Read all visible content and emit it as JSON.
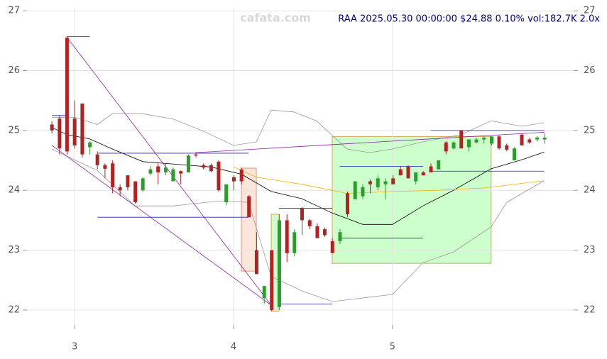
{
  "chart_data": {
    "type": "candlestick",
    "title": "RAA 2025.05.30 00:00:00 $24.88 0.10% vol:182.7K 2.0x",
    "watermark": "cafata.com",
    "xlim": [
      2.7,
      6.14
    ],
    "ylim": [
      21.75,
      27.05
    ],
    "xticks": [
      3,
      4,
      5
    ],
    "yticks": [
      22,
      23,
      24,
      25,
      26,
      27
    ],
    "grid": true,
    "up_color": "#2a9d2a",
    "down_color": "#b22222",
    "x": [
      2.857,
      2.905,
      2.952,
      3.0,
      3.048,
      3.096,
      3.143,
      3.191,
      3.239,
      3.286,
      3.334,
      3.382,
      3.429,
      3.477,
      3.525,
      3.573,
      3.62,
      3.668,
      3.716,
      3.763,
      3.811,
      3.859,
      3.906,
      3.954,
      4.002,
      4.05,
      4.097,
      4.145,
      4.193,
      4.24,
      4.288,
      4.336,
      4.383,
      4.431,
      4.479,
      4.527,
      4.574,
      4.622,
      4.67,
      4.717,
      4.765,
      4.813,
      4.86,
      4.908,
      4.956,
      5.004,
      5.051,
      5.099,
      5.147,
      5.194,
      5.242,
      5.29,
      5.337,
      5.385,
      5.433,
      5.481,
      5.528,
      5.576,
      5.624,
      5.671,
      5.719,
      5.767,
      5.814,
      5.862,
      5.91,
      5.958
    ],
    "open": [
      25.1,
      25.2,
      26.55,
      25.2,
      25.45,
      24.72,
      24.6,
      24.42,
      24.45,
      24.05,
      24.25,
      24.15,
      24.0,
      24.28,
      24.4,
      24.3,
      24.15,
      24.32,
      24.3,
      24.6,
      24.42,
      24.42,
      24.48,
      23.8,
      24.22,
      24.35,
      23.9,
      23.0,
      22.2,
      23.0,
      22.05,
      23.5,
      22.95,
      23.7,
      23.5,
      23.4,
      23.35,
      23.15,
      23.15,
      23.95,
      23.85,
      23.9,
      24.15,
      24.05,
      24.1,
      24.2,
      24.35,
      24.4,
      24.15,
      24.3,
      24.4,
      24.35,
      24.8,
      24.7,
      25.0,
      24.72,
      24.8,
      24.85,
      24.78,
      24.9,
      24.75,
      24.5,
      24.93,
      24.85,
      24.85,
      24.85
    ],
    "high": [
      25.15,
      25.25,
      26.57,
      25.5,
      25.45,
      24.82,
      24.65,
      24.45,
      24.5,
      24.1,
      24.25,
      24.15,
      24.22,
      24.4,
      24.45,
      24.45,
      24.38,
      24.33,
      24.6,
      24.62,
      24.45,
      24.45,
      24.5,
      24.1,
      24.25,
      24.38,
      23.92,
      23.3,
      22.4,
      23.0,
      23.6,
      23.6,
      23.35,
      23.72,
      23.52,
      23.45,
      23.38,
      23.2,
      23.35,
      23.98,
      24.15,
      24.1,
      24.18,
      24.25,
      24.2,
      24.25,
      24.4,
      24.42,
      24.3,
      24.32,
      24.45,
      24.5,
      24.82,
      24.82,
      25.0,
      24.85,
      24.88,
      24.9,
      24.9,
      24.92,
      24.78,
      24.72,
      24.95,
      24.88,
      24.9,
      24.95
    ],
    "low": [
      24.95,
      24.6,
      24.6,
      24.7,
      24.55,
      24.6,
      24.35,
      24.2,
      23.95,
      23.9,
      24.0,
      23.78,
      23.98,
      24.25,
      24.1,
      24.25,
      24.15,
      24.1,
      24.3,
      24.55,
      24.35,
      24.3,
      23.98,
      23.75,
      24.0,
      24.1,
      23.55,
      22.6,
      22.1,
      21.98,
      22.0,
      22.8,
      22.9,
      23.25,
      23.35,
      23.2,
      23.22,
      22.95,
      23.1,
      23.55,
      23.85,
      23.85,
      23.95,
      24.0,
      23.85,
      24.1,
      24.25,
      24.2,
      24.1,
      24.25,
      24.3,
      24.35,
      24.6,
      24.68,
      24.7,
      24.65,
      24.78,
      24.78,
      24.75,
      24.68,
      24.65,
      24.5,
      24.75,
      24.78,
      24.82,
      24.78
    ],
    "close": [
      25.0,
      24.7,
      24.65,
      24.75,
      24.6,
      24.8,
      24.42,
      24.36,
      24.05,
      24.0,
      24.05,
      23.8,
      24.2,
      24.35,
      24.3,
      24.38,
      24.35,
      24.28,
      24.58,
      24.58,
      24.38,
      24.32,
      24.0,
      24.1,
      24.15,
      24.15,
      23.55,
      22.6,
      22.4,
      22.0,
      23.5,
      22.95,
      23.3,
      23.5,
      23.4,
      23.2,
      23.25,
      22.95,
      23.3,
      23.6,
      24.15,
      24.05,
      24.1,
      24.2,
      24.15,
      24.1,
      24.25,
      24.2,
      24.3,
      24.25,
      24.3,
      24.5,
      24.65,
      24.8,
      24.7,
      24.85,
      24.85,
      24.88,
      24.9,
      24.7,
      24.68,
      24.7,
      24.75,
      24.8,
      24.88,
      24.88
    ],
    "overlays": [
      {
        "color": "#000000",
        "x": [
          2.857,
          2.951,
          3.094,
          3.237,
          3.429,
          3.665,
          3.857,
          4.049,
          4.237,
          4.429,
          4.621,
          4.813,
          5.0,
          5.192,
          5.384,
          5.621,
          5.813,
          5.955
        ],
        "values": [
          25.05,
          24.93,
          24.86,
          24.69,
          24.48,
          24.43,
          24.39,
          24.27,
          23.98,
          23.86,
          23.62,
          23.43,
          23.43,
          23.74,
          24.0,
          24.36,
          24.51,
          24.64
        ]
      },
      {
        "color": "#f0b400",
        "x": [
          4.0,
          4.143,
          4.429,
          4.714,
          5.0,
          5.286,
          5.576,
          5.955
        ],
        "values": [
          24.39,
          24.22,
          24.1,
          23.95,
          23.98,
          24.0,
          24.04,
          24.16
        ]
      },
      {
        "color": "#999999",
        "x": [
          2.857,
          3.0,
          3.143,
          3.237,
          3.429,
          3.621,
          3.808,
          4.0,
          4.143,
          4.237,
          4.379,
          4.522,
          4.714,
          4.857,
          5.0,
          5.192,
          5.433,
          5.621,
          5.813,
          5.955
        ],
        "values": [
          25.22,
          25.22,
          25.1,
          25.28,
          25.28,
          25.19,
          24.99,
          24.75,
          24.81,
          25.34,
          25.31,
          25.16,
          24.69,
          24.63,
          24.69,
          24.81,
          24.93,
          25.16,
          25.07,
          25.13
        ]
      },
      {
        "color": "#999999",
        "x": [
          2.857,
          2.951,
          3.143,
          3.379,
          3.621,
          3.906,
          4.094,
          4.237,
          4.429,
          4.621,
          5.0,
          5.192,
          5.384,
          5.621,
          5.719,
          5.955
        ],
        "values": [
          24.69,
          24.57,
          24.33,
          23.74,
          23.74,
          23.82,
          23.8,
          22.56,
          22.32,
          22.14,
          22.26,
          22.79,
          22.97,
          23.39,
          23.8,
          24.16
        ]
      }
    ],
    "zones": [
      {
        "xlim": [
          4.621,
          5.621
        ],
        "ylim": [
          22.78,
          24.9
        ],
        "color": "#ccffcc",
        "edge": "#d8a050"
      },
      {
        "xlim": [
          4.049,
          4.143
        ],
        "ylim": [
          22.65,
          24.37
        ],
        "color": "#fbe6dc",
        "edge": "#e09070"
      },
      {
        "xlim": [
          4.237,
          4.286
        ],
        "ylim": [
          21.98,
          23.6
        ],
        "color": "#ccffcc",
        "edge": "#d8a050"
      }
    ],
    "trend_lines": [
      {
        "x": [
          2.951,
          4.237
        ],
        "values": [
          26.56,
          22.08
        ],
        "color": "#8b22a8"
      },
      {
        "x": [
          2.857,
          4.237
        ],
        "values": [
          24.75,
          22.08
        ],
        "color": "#8b22a8"
      },
      {
        "x": [
          3.76,
          5.955
        ],
        "values": [
          24.63,
          24.97
        ],
        "color": "#8b22a8"
      }
    ],
    "levels": [
      {
        "x": [
          2.951,
          3.094
        ],
        "value": 26.57
      },
      {
        "x": [
          2.857,
          2.951
        ],
        "value": 25.25
      },
      {
        "x": [
          3.143,
          4.094
        ],
        "value": 24.62
      },
      {
        "x": [
          3.143,
          4.094
        ],
        "value": 23.55
      },
      {
        "x": [
          4.286,
          4.621
        ],
        "value": 23.7
      },
      {
        "x": [
          4.286,
          4.621
        ],
        "value": 22.1
      },
      {
        "x": [
          4.67,
          5.192
        ],
        "value": 24.4
      },
      {
        "x": [
          4.67,
          5.192
        ],
        "value": 23.2
      },
      {
        "x": [
          5.241,
          5.955
        ],
        "value": 25.0
      },
      {
        "x": [
          5.241,
          5.955
        ],
        "value": 24.32
      }
    ]
  }
}
